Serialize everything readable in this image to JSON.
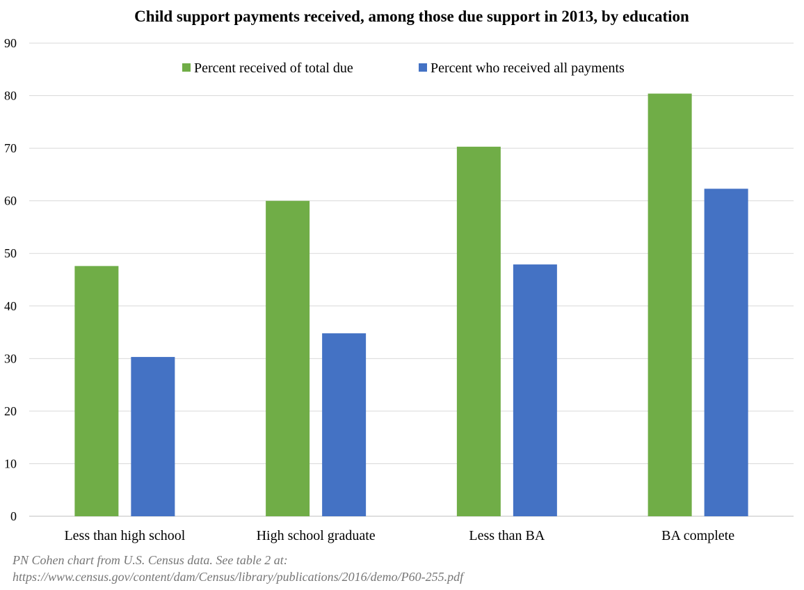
{
  "chart_data": {
    "type": "bar",
    "title": "Child support payments received, among those due support in 2013, by education",
    "categories": [
      "Less than high school",
      "High school graduate",
      "Less than BA",
      "BA complete"
    ],
    "series": [
      {
        "name": "Percent received of total due",
        "values": [
          47.6,
          60.0,
          70.3,
          80.4
        ],
        "color": "#70ad47"
      },
      {
        "name": "Percent who received all payments",
        "values": [
          30.3,
          34.8,
          47.9,
          62.3
        ],
        "color": "#4472c4"
      }
    ],
    "xlabel": "",
    "ylabel": "",
    "ylim": [
      0,
      90
    ],
    "yticks": [
      0,
      10,
      20,
      30,
      40,
      50,
      60,
      70,
      80,
      90
    ],
    "grid": true,
    "legend_position": "top-center"
  },
  "source": {
    "line1": "PN Cohen chart from U.S. Census data. See table 2 at:",
    "line2": "https://www.census.gov/content/dam/Census/library/publications/2016/demo/P60-255.pdf"
  },
  "colors": {
    "grid": "#d9d9d9",
    "axis": "#bfbfbf",
    "source_text": "#767676"
  }
}
